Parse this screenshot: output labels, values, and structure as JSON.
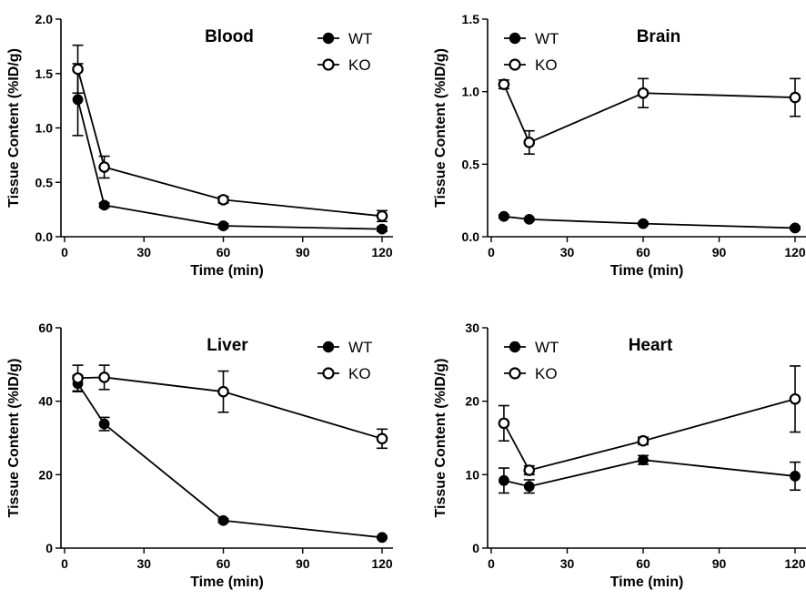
{
  "chart_data": [
    {
      "type": "line",
      "title": "Blood",
      "xlabel": "Time (min)",
      "ylabel": "Tissue Content (%ID/g)",
      "xlim": [
        0,
        120
      ],
      "ylim": [
        0,
        2.0
      ],
      "xticks": [
        0,
        30,
        60,
        90,
        120
      ],
      "yticks": [
        "0.0",
        "0.5",
        "1.0",
        "1.5",
        "2.0"
      ],
      "legend_position": "top-right",
      "x": [
        5,
        15,
        60,
        120
      ],
      "series": [
        {
          "name": "WT",
          "marker": "filled-circle",
          "values": [
            1.26,
            0.29,
            0.1,
            0.07
          ],
          "err": [
            0.33,
            0.02,
            0.02,
            0.02
          ]
        },
        {
          "name": "KO",
          "marker": "open-circle",
          "values": [
            1.54,
            0.64,
            0.34,
            0.19
          ],
          "err": [
            0.22,
            0.1,
            0.03,
            0.05
          ]
        }
      ]
    },
    {
      "type": "line",
      "title": "Brain",
      "xlabel": "Time (min)",
      "ylabel": "Tissue Content (%ID/g)",
      "xlim": [
        0,
        120
      ],
      "ylim": [
        0,
        1.5
      ],
      "xticks": [
        0,
        30,
        60,
        90,
        120
      ],
      "yticks": [
        "0.0",
        "0.5",
        "1.0",
        "1.5"
      ],
      "legend_position": "top-left",
      "x": [
        5,
        15,
        60,
        120
      ],
      "series": [
        {
          "name": "WT",
          "marker": "filled-circle",
          "values": [
            0.14,
            0.12,
            0.09,
            0.06
          ],
          "err": [
            0.01,
            0.01,
            0.01,
            0.01
          ]
        },
        {
          "name": "KO",
          "marker": "open-circle",
          "values": [
            1.05,
            0.65,
            0.99,
            0.96
          ],
          "err": [
            0.03,
            0.08,
            0.1,
            0.13
          ]
        }
      ]
    },
    {
      "type": "line",
      "title": "Liver",
      "xlabel": "Time (min)",
      "ylabel": "Tissue Content (%ID/g)",
      "xlim": [
        0,
        120
      ],
      "ylim": [
        0,
        60
      ],
      "xticks": [
        0,
        30,
        60,
        90,
        120
      ],
      "yticks": [
        "0",
        "20",
        "40",
        "60"
      ],
      "legend_position": "top-right",
      "x": [
        5,
        15,
        60,
        120
      ],
      "series": [
        {
          "name": "WT",
          "marker": "filled-circle",
          "values": [
            44.8,
            33.8,
            7.5,
            2.9
          ],
          "err": [
            2.2,
            1.8,
            0.5,
            0.3
          ]
        },
        {
          "name": "KO",
          "marker": "open-circle",
          "values": [
            46.3,
            46.5,
            42.6,
            29.8
          ],
          "err": [
            3.5,
            3.3,
            5.6,
            2.6
          ]
        }
      ]
    },
    {
      "type": "line",
      "title": "Heart",
      "xlabel": "Time (min)",
      "ylabel": "Tissue Content (%ID/g)",
      "xlim": [
        0,
        120
      ],
      "ylim": [
        0,
        30
      ],
      "xticks": [
        0,
        30,
        60,
        90,
        120
      ],
      "yticks": [
        "0",
        "10",
        "20",
        "30"
      ],
      "legend_position": "top-left",
      "x": [
        5,
        15,
        60,
        120
      ],
      "series": [
        {
          "name": "WT",
          "marker": "filled-circle",
          "values": [
            9.2,
            8.4,
            12.0,
            9.8
          ],
          "err": [
            1.7,
            0.9,
            0.6,
            1.9
          ]
        },
        {
          "name": "KO",
          "marker": "open-circle",
          "values": [
            17.0,
            10.6,
            14.6,
            20.3
          ],
          "err": [
            2.4,
            0.6,
            0.5,
            4.5
          ]
        }
      ]
    }
  ]
}
